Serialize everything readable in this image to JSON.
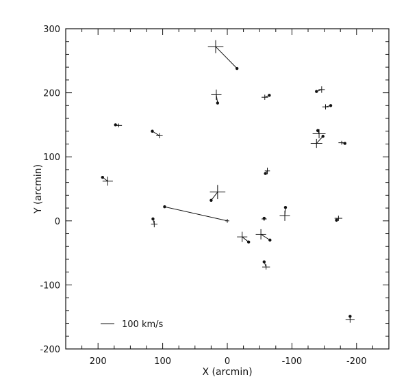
{
  "chart_data": {
    "type": "scatter",
    "title": "",
    "xlabel": "X (arcmin)",
    "ylabel": "Y (arcmin)",
    "xlim": [
      250,
      -250
    ],
    "ylim": [
      -200,
      300
    ],
    "x_ticks": [
      200,
      100,
      0,
      -100,
      -200
    ],
    "y_ticks": [
      -200,
      -100,
      0,
      100,
      200,
      300
    ],
    "x_tick_labels": [
      "200",
      "100",
      "0",
      "-100",
      "-200"
    ],
    "y_tick_labels": [
      "-200",
      "-100",
      "0",
      "100",
      "200",
      "300"
    ],
    "legend": {
      "label": "100 km/s",
      "reference_length_kms": 100
    },
    "grid": false,
    "vectors": [
      {
        "x0": 18,
        "y0": 272,
        "x1": -15,
        "y1": 238,
        "err_x": 12,
        "err_y": 10
      },
      {
        "x0": 17,
        "y0": 197,
        "x1": 15,
        "y1": 184,
        "err_x": 8,
        "err_y": 8
      },
      {
        "x0": -58,
        "y0": 193,
        "x1": -65,
        "y1": 196,
        "err_x": 5,
        "err_y": 4
      },
      {
        "x0": -146,
        "y0": 205,
        "x1": -138,
        "y1": 202,
        "err_x": 5,
        "err_y": 5
      },
      {
        "x0": -152,
        "y0": 178,
        "x1": -160,
        "y1": 180,
        "err_x": 5,
        "err_y": 4
      },
      {
        "x0": 168,
        "y0": 149,
        "x1": 173,
        "y1": 150,
        "err_x": 5,
        "err_y": 3
      },
      {
        "x0": 105,
        "y0": 133,
        "x1": 116,
        "y1": 140,
        "err_x": 5,
        "err_y": 4
      },
      {
        "x0": -142,
        "y0": 136,
        "x1": -140,
        "y1": 141,
        "err_x": 10,
        "err_y": 7
      },
      {
        "x0": -138,
        "y0": 121,
        "x1": -148,
        "y1": 132,
        "err_x": 9,
        "err_y": 7
      },
      {
        "x0": -177,
        "y0": 122,
        "x1": -182,
        "y1": 121,
        "err_x": 5,
        "err_y": 3
      },
      {
        "x0": -62,
        "y0": 78,
        "x1": -59,
        "y1": 74,
        "err_x": 4,
        "err_y": 5
      },
      {
        "x0": 185,
        "y0": 62,
        "x1": 193,
        "y1": 68,
        "err_x": 8,
        "err_y": 7
      },
      {
        "x0": 15,
        "y0": 45,
        "x1": 25,
        "y1": 32,
        "err_x": 12,
        "err_y": 11
      },
      {
        "x0": -89,
        "y0": 8,
        "x1": -90,
        "y1": 21,
        "err_x": 8,
        "err_y": 8
      },
      {
        "x0": -57,
        "y0": 3,
        "x1": -57,
        "y1": 4,
        "err_x": 4,
        "err_y": 3
      },
      {
        "x0": -172,
        "y0": 4,
        "x1": -169,
        "y1": 1,
        "err_x": 6,
        "err_y": 4
      },
      {
        "x0": 113,
        "y0": -5,
        "x1": 115,
        "y1": 3,
        "err_x": 5,
        "err_y": 5
      },
      {
        "x0": 0,
        "y0": 0,
        "x1": 97,
        "y1": 22,
        "err_x": 3,
        "err_y": 3
      },
      {
        "x0": -23,
        "y0": -25,
        "x1": -33,
        "y1": -33,
        "err_x": 8,
        "err_y": 8
      },
      {
        "x0": -52,
        "y0": -21,
        "x1": -66,
        "y1": -30,
        "err_x": 8,
        "err_y": 8
      },
      {
        "x0": -60,
        "y0": -72,
        "x1": -57,
        "y1": -64,
        "err_x": 6,
        "err_y": 4
      },
      {
        "x0": -190,
        "y0": -154,
        "x1": -190,
        "y1": -149,
        "err_x": 7,
        "err_y": 5
      }
    ]
  }
}
